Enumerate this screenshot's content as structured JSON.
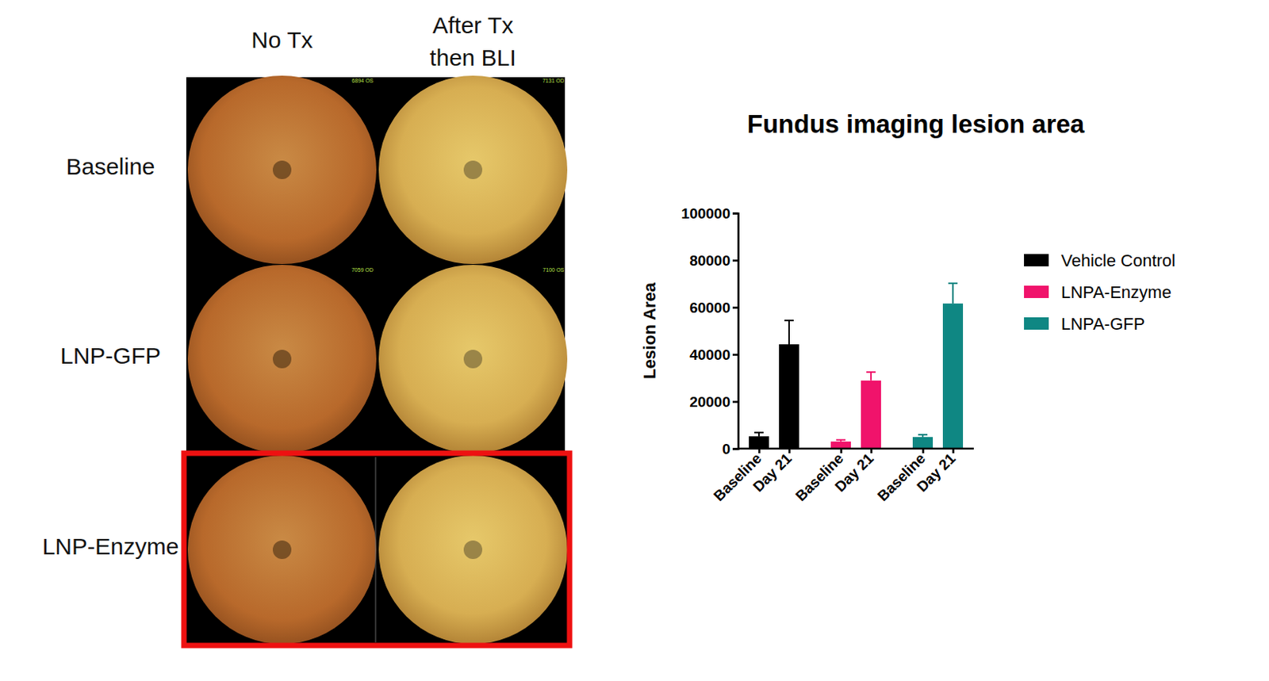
{
  "chart_data": {
    "type": "bar",
    "title": "Fundus imaging lesion area",
    "y_label": "Lesion Area",
    "categories": [
      "Baseline",
      "Day 21",
      "Baseline",
      "Day 21",
      "Baseline",
      "Day 21"
    ],
    "series": [
      {
        "name": "Vehicle Control",
        "color": "#000000",
        "values": [
          5200,
          44300,
          null,
          null,
          null,
          null
        ],
        "errors": [
          1600,
          10100,
          null,
          null,
          null,
          null
        ]
      },
      {
        "name": "LNPA-Enzyme",
        "color": "#f0136b",
        "values": [
          null,
          null,
          3000,
          28900,
          null,
          null
        ],
        "errors": [
          null,
          null,
          700,
          3600,
          null,
          null
        ]
      },
      {
        "name": "LNPA-GFP",
        "color": "#0f8783",
        "values": [
          null,
          null,
          null,
          null,
          4900,
          61600
        ],
        "errors": [
          null,
          null,
          null,
          null,
          1000,
          8600
        ]
      }
    ],
    "ylim": [
      0,
      100000
    ],
    "yticks": [
      0,
      20000,
      40000,
      60000,
      80000,
      100000
    ],
    "grid": false,
    "legend": "right"
  },
  "image_panel": {
    "column_headers": [
      {
        "lines": [
          "No Tx"
        ]
      },
      {
        "lines": [
          "After Tx",
          "then BLI"
        ]
      }
    ],
    "row_labels": [
      "Baseline",
      "LNP-GFP",
      "LNP-Enzyme"
    ],
    "image_ids": [
      [
        "6894 OS",
        "7131 OD"
      ],
      [
        "7059 OD",
        "7100 OS"
      ],
      [
        null,
        null
      ]
    ]
  }
}
